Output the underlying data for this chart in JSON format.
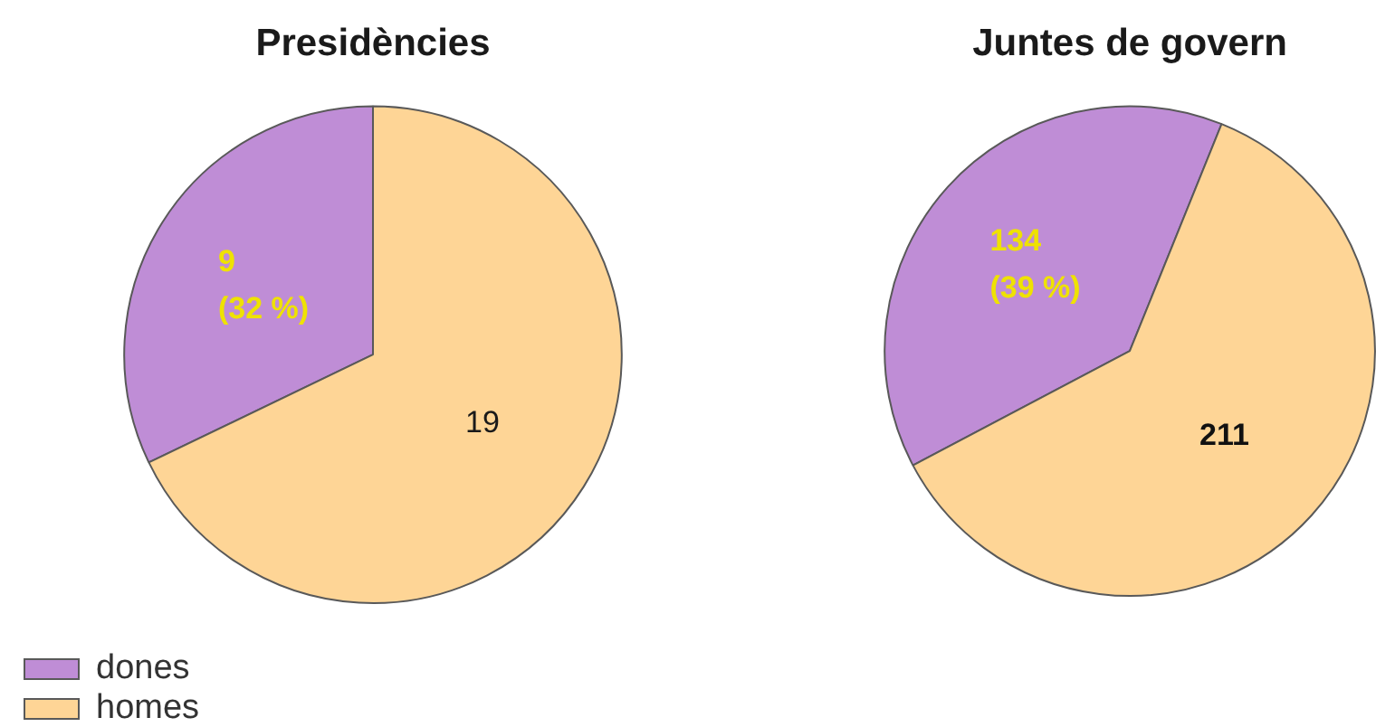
{
  "chart_data": [
    {
      "type": "pie",
      "title": "Presidències",
      "categories": [
        "dones",
        "homes"
      ],
      "values": [
        9,
        19
      ],
      "colors": [
        "#bf8dd6",
        "#fed596"
      ],
      "value_labels": [
        "9\n(32 %)",
        "19"
      ],
      "legend": "bottom left"
    },
    {
      "type": "pie",
      "title": "Juntes de govern",
      "categories": [
        null,
        null
      ],
      "values": [
        134,
        211
      ],
      "colors": [
        "#bf8dd6",
        "#fed596"
      ],
      "value_labels": [
        "134\n(39 %)",
        "211"
      ]
    }
  ]
}
